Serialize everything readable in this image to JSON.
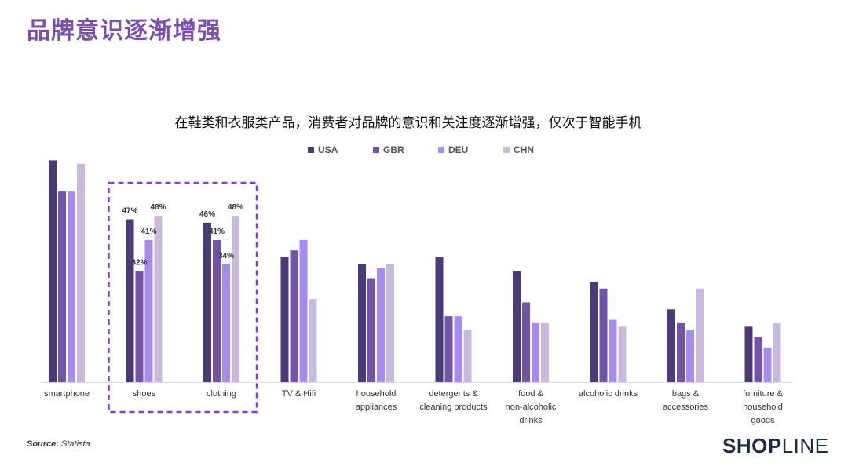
{
  "page": {
    "title": "品牌意识逐渐增强",
    "source_prefix": "Source:",
    "source_name": "Statista",
    "brand_left": "SHOP",
    "brand_right": "LINE"
  },
  "chart_data": {
    "type": "bar",
    "title": "在鞋类和衣服类产品，消费者对品牌的意识和关注度逐渐增强，仅次于智能手机",
    "xlabel": "",
    "ylabel": "",
    "ylim": [
      0,
      65
    ],
    "legend_position": "top",
    "colors": [
      "#4b3a7a",
      "#7353a8",
      "#a58cf0",
      "#c8bade"
    ],
    "highlight_color": "#8a3ad6",
    "categories": [
      [
        "smartphone"
      ],
      [
        "shoes"
      ],
      [
        "clothing"
      ],
      [
        "TV & Hifi"
      ],
      [
        "household",
        "appliances"
      ],
      [
        "detergents &",
        "cleaning products"
      ],
      [
        "food &",
        "non-alcoholic",
        "drinks"
      ],
      [
        "alcoholic drinks"
      ],
      [
        "bags &",
        "accessories"
      ],
      [
        "furniture &",
        "household",
        "goods"
      ]
    ],
    "series": [
      {
        "name": "USA",
        "values": [
          64,
          47,
          46,
          36,
          34,
          36,
          32,
          29,
          21,
          16
        ]
      },
      {
        "name": "GBR",
        "values": [
          55,
          32,
          41,
          38,
          30,
          19,
          23,
          27,
          17,
          13
        ]
      },
      {
        "name": "DEU",
        "values": [
          55,
          41,
          34,
          41,
          33,
          19,
          17,
          18,
          15,
          10
        ]
      },
      {
        "name": "CHN",
        "values": [
          63,
          48,
          48,
          24,
          34,
          15,
          17,
          16,
          27,
          17
        ]
      }
    ],
    "data_labels": [
      {
        "category": 1,
        "series": 0,
        "text": "47%"
      },
      {
        "category": 1,
        "series": 1,
        "text": "32%"
      },
      {
        "category": 1,
        "series": 2,
        "text": "41%"
      },
      {
        "category": 1,
        "series": 3,
        "text": "48%"
      },
      {
        "category": 2,
        "series": 0,
        "text": "46%"
      },
      {
        "category": 2,
        "series": 1,
        "text": "41%"
      },
      {
        "category": 2,
        "series": 2,
        "text": "34%"
      },
      {
        "category": 2,
        "series": 3,
        "text": "48%"
      }
    ],
    "highlighted_categories": [
      1,
      2
    ]
  }
}
